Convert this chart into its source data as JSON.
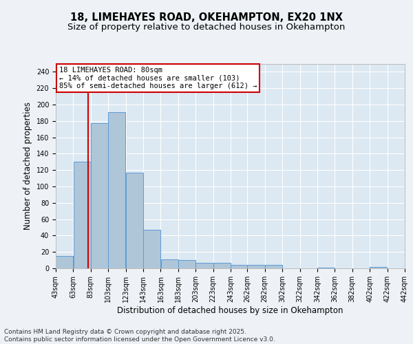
{
  "title1": "18, LIMEHAYES ROAD, OKEHAMPTON, EX20 1NX",
  "title2": "Size of property relative to detached houses in Okehampton",
  "xlabel": "Distribution of detached houses by size in Okehampton",
  "ylabel": "Number of detached properties",
  "annotation_line1": "18 LIMEHAYES ROAD: 80sqm",
  "annotation_line2": "← 14% of detached houses are smaller (103)",
  "annotation_line3": "85% of semi-detached houses are larger (612) →",
  "property_size": 80,
  "bin_edges": [
    43,
    63,
    83,
    103,
    123,
    143,
    163,
    183,
    203,
    223,
    243,
    262,
    282,
    302,
    322,
    342,
    362,
    382,
    402,
    422,
    442
  ],
  "bar_heights": [
    15,
    130,
    177,
    191,
    117,
    47,
    11,
    10,
    7,
    7,
    4,
    4,
    4,
    0,
    0,
    1,
    0,
    0,
    2,
    0
  ],
  "bar_color": "#aec6d8",
  "bar_edge_color": "#5b9bd5",
  "vline_color": "#cc0000",
  "background_color": "#eef2f6",
  "plot_bg_color": "#dce8f2",
  "grid_color": "#ffffff",
  "annotation_box_color": "#ffffff",
  "annotation_box_edge": "#cc0000",
  "footer_line1": "Contains HM Land Registry data © Crown copyright and database right 2025.",
  "footer_line2": "Contains public sector information licensed under the Open Government Licence v3.0.",
  "ylim": [
    0,
    250
  ],
  "yticks": [
    0,
    20,
    40,
    60,
    80,
    100,
    120,
    140,
    160,
    180,
    200,
    220,
    240
  ],
  "title_fontsize": 10.5,
  "subtitle_fontsize": 9.5,
  "label_fontsize": 8.5,
  "tick_fontsize": 7,
  "annotation_fontsize": 7.5,
  "footer_fontsize": 6.5
}
